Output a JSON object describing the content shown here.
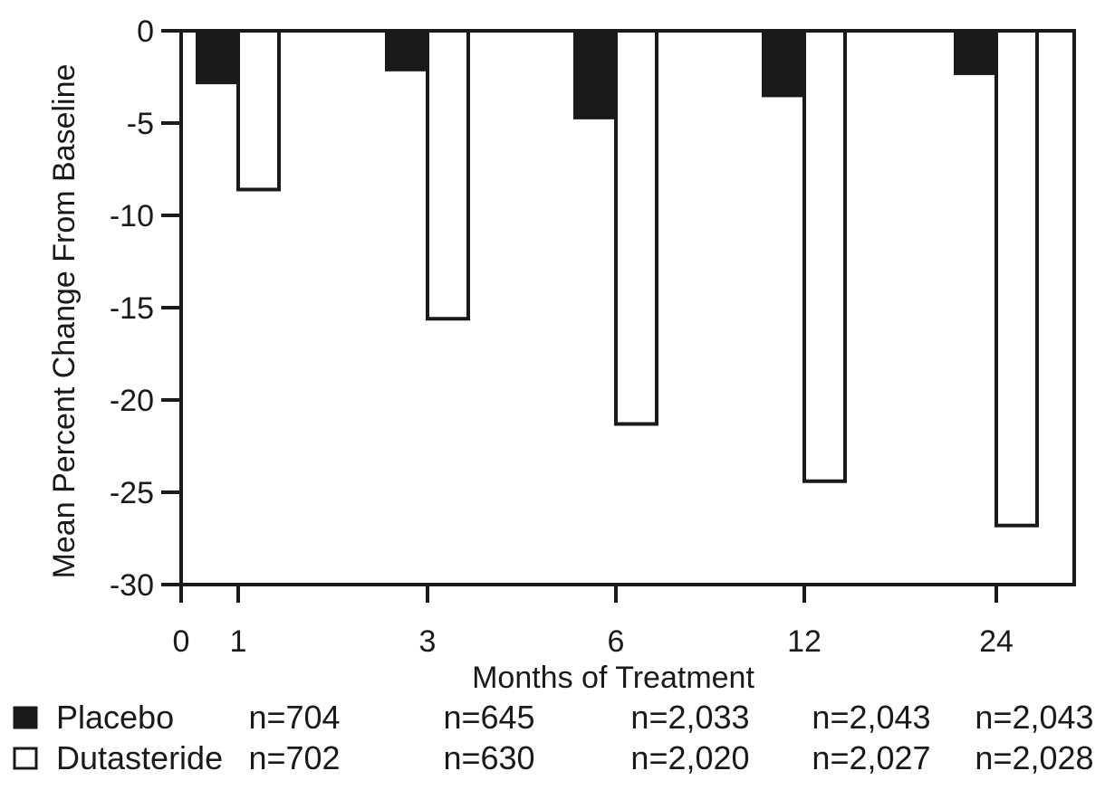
{
  "chart_data": {
    "type": "bar",
    "xlabel": "Months of Treatment",
    "ylabel": "Mean Percent Change From Baseline",
    "ylim": [
      -30,
      0
    ],
    "y_ticks": [
      0,
      -5,
      -10,
      -15,
      -20,
      -25,
      -30
    ],
    "x_tick_labels": [
      "0",
      "1",
      "3",
      "6",
      "12",
      "24"
    ],
    "categories": [
      "1",
      "3",
      "6",
      "12",
      "24"
    ],
    "series": [
      {
        "name": "Placebo",
        "color": "#1a1a1a",
        "values": [
          -2.8,
          -2.1,
          -4.7,
          -3.5,
          -2.3
        ],
        "n": [
          "n=704",
          "n=645",
          "n=2,033",
          "n=2,043",
          "n=2,043"
        ]
      },
      {
        "name": "Dutasteride",
        "color": "#ffffff",
        "values": [
          -8.6,
          -15.6,
          -21.3,
          -24.4,
          -26.8
        ],
        "n": [
          "n=702",
          "n=630",
          "n=2,020",
          "n=2,027",
          "n=2,028"
        ]
      }
    ],
    "grid": false,
    "legend": "bottom-left"
  }
}
